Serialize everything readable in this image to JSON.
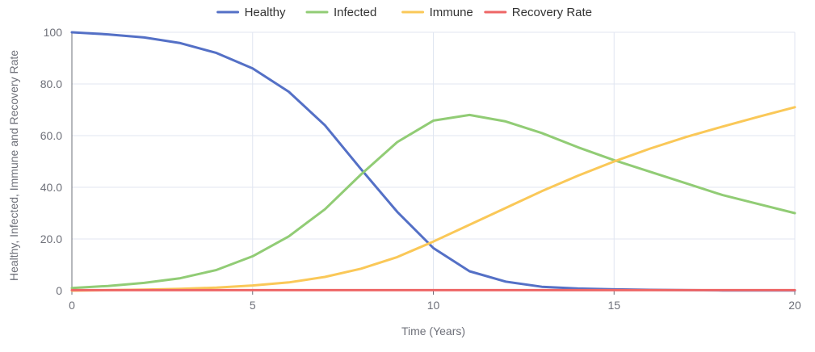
{
  "chart_data": {
    "type": "line",
    "title": "",
    "xlabel": "Time (Years)",
    "ylabel": "Healthy, Infected, Immune and Recovery Rate",
    "xlim": [
      0,
      20
    ],
    "ylim": [
      0,
      100
    ],
    "x_ticks": [
      0,
      5,
      10,
      15,
      20
    ],
    "x_tick_labels": [
      "0",
      "5",
      "10",
      "15",
      "20"
    ],
    "y_ticks": [
      0,
      20,
      40,
      60,
      80,
      100
    ],
    "y_tick_labels": [
      "0",
      "20.0",
      "40.0",
      "60.0",
      "80.0",
      "100"
    ],
    "grid": true,
    "legend_position": "top-center",
    "x": [
      0,
      1,
      2,
      3,
      4,
      5,
      6,
      7,
      8,
      9,
      10,
      11,
      12,
      13,
      14,
      15,
      16,
      17,
      18,
      19,
      20
    ],
    "series": [
      {
        "name": "Healthy",
        "color": "#5470c6",
        "values": [
          100,
          99.2,
          98,
          95.8,
          92,
          86,
          77,
          64,
          47,
          30.5,
          16.5,
          7.5,
          3.5,
          1.5,
          0.8,
          0.5,
          0.3,
          0.2,
          0.1,
          0.1,
          0.1
        ]
      },
      {
        "name": "Infected",
        "color": "#91cc75",
        "values": [
          1,
          1.8,
          3,
          4.8,
          8,
          13.3,
          21,
          31.5,
          45,
          57.5,
          65.8,
          68,
          65.5,
          61,
          55.5,
          50.5,
          46,
          41.5,
          37,
          33.5,
          30
        ]
      },
      {
        "name": "Immune",
        "color": "#fac858",
        "values": [
          0,
          0.2,
          0.4,
          0.7,
          1.2,
          2,
          3.2,
          5.3,
          8.5,
          13,
          19,
          25.5,
          32,
          38.5,
          44.5,
          50,
          55,
          59.5,
          63.5,
          67.3,
          71
        ]
      },
      {
        "name": "Recovery Rate",
        "color": "#ee6666",
        "values": [
          0.2,
          0.2,
          0.2,
          0.2,
          0.2,
          0.2,
          0.2,
          0.2,
          0.2,
          0.2,
          0.2,
          0.2,
          0.2,
          0.2,
          0.2,
          0.2,
          0.2,
          0.2,
          0.2,
          0.2,
          0.2
        ]
      }
    ]
  }
}
